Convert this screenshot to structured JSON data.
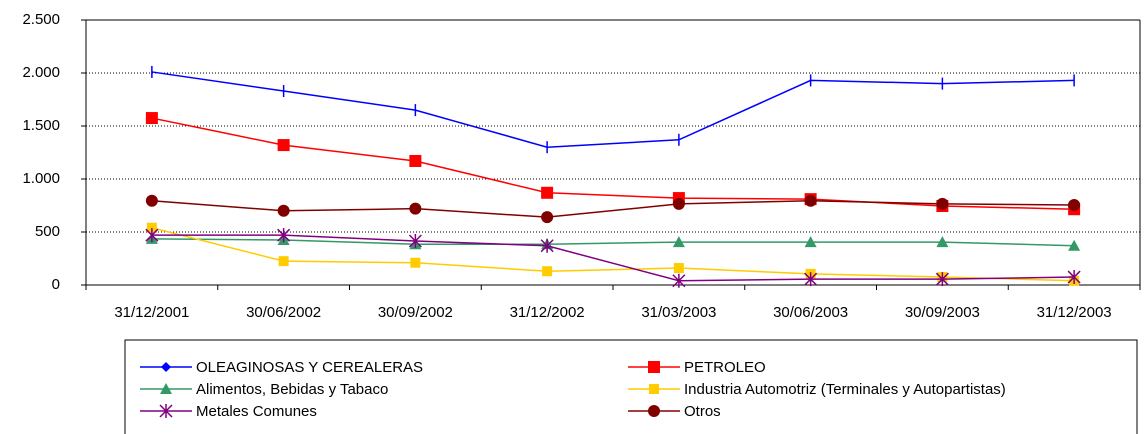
{
  "chart_data": {
    "type": "line",
    "categories": [
      "31/12/2001",
      "30/06/2002",
      "30/09/2002",
      "31/12/2002",
      "31/03/2003",
      "30/06/2003",
      "30/09/2003",
      "31/12/2003"
    ],
    "series": [
      {
        "name": "OLEAGINOSAS Y CEREALERAS",
        "color": "#0000ff",
        "marker": "dash",
        "values": [
          2010,
          1830,
          1650,
          1300,
          1370,
          1930,
          1900,
          1930
        ]
      },
      {
        "name": "PETROLEO",
        "color": "#ff0000",
        "marker": "square",
        "values": [
          1575,
          1320,
          1170,
          870,
          820,
          810,
          745,
          715
        ]
      },
      {
        "name": "Alimentos, Bebidas y Tabaco",
        "color": "#339966",
        "marker": "triangle",
        "values": [
          435,
          425,
          385,
          385,
          405,
          405,
          405,
          370
        ]
      },
      {
        "name": "Industria Automotriz (Terminales y Autopartistas)",
        "color": "#ffcc00",
        "marker": "small-square",
        "values": [
          540,
          225,
          210,
          130,
          160,
          105,
          75,
          40
        ]
      },
      {
        "name": "Metales Comunes",
        "color": "#800080",
        "marker": "star",
        "values": [
          470,
          470,
          415,
          370,
          40,
          55,
          55,
          75
        ]
      },
      {
        "name": "Otros",
        "color": "#800000",
        "marker": "circle",
        "values": [
          795,
          700,
          720,
          640,
          765,
          795,
          765,
          755
        ]
      }
    ],
    "ylim": [
      0,
      2500
    ],
    "yticks": [
      0,
      500,
      {
        "value": 1000,
        "label": "1.000"
      },
      {
        "value": 1500,
        "label": "1.500"
      },
      {
        "value": 2000,
        "label": "2.000"
      },
      {
        "value": 2500,
        "label": "2.500"
      }
    ],
    "grid": true
  }
}
